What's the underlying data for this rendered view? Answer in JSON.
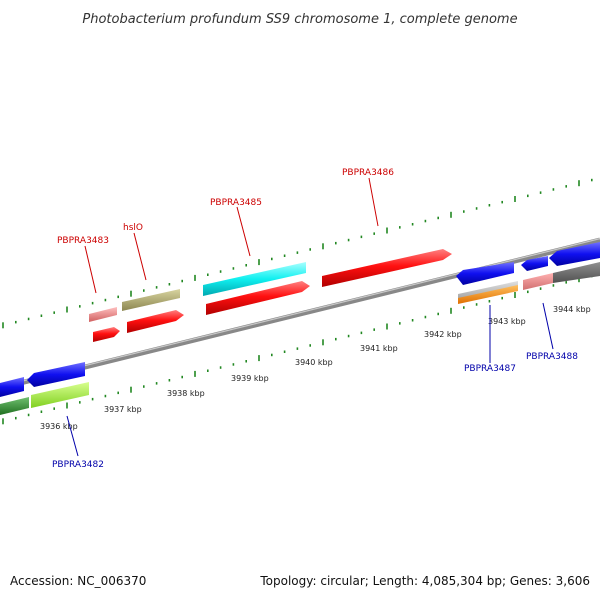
{
  "title": "Photobacterium profundum SS9 chromosome 1, complete genome",
  "footer": {
    "accession": "Accession: NC_006370",
    "topology": "Topology: circular; Length: 4,085,304 bp; Genes: 3,606"
  },
  "scale_labels": [
    "3936 kbp",
    "3937 kbp",
    "3938 kbp",
    "3939 kbp",
    "3940 kbp",
    "3941 kbp",
    "3942 kbp",
    "3943 kbp",
    "3944 kbp"
  ],
  "gene_labels": {
    "pbpra3483": "PBPRA3483",
    "hslo": "hslO",
    "pbpra3485": "PBPRA3485",
    "pbpra3486": "PBPRA3486",
    "pbpra3482": "PBPRA3482",
    "pbpra3487": "PBPRA3487",
    "pbpra3488": "PBPRA3488"
  },
  "colors": {
    "forward_label": "#cc0000",
    "reverse_label": "#0000aa",
    "tick": "#228822",
    "backbone": "#888888"
  }
}
